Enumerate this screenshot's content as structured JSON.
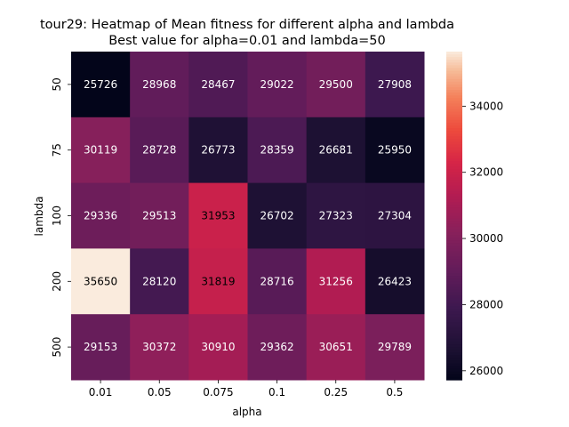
{
  "chart_data": {
    "type": "heatmap",
    "title": "tour29: Heatmap of Mean fitness for different alpha and lambda",
    "subtitle": "Best value for alpha=0.01 and lambda=50",
    "xlabel": "alpha",
    "ylabel": "lambda",
    "x": [
      "0.01",
      "0.05",
      "0.075",
      "0.1",
      "0.25",
      "0.5"
    ],
    "y": [
      "50",
      "75",
      "100",
      "200",
      "500"
    ],
    "values": [
      [
        25726,
        28968,
        28467,
        29022,
        29500,
        27908
      ],
      [
        30119,
        28728,
        26773,
        28359,
        26681,
        25950
      ],
      [
        29336,
        29513,
        31953,
        26702,
        27323,
        27304
      ],
      [
        35650,
        28120,
        31819,
        28716,
        31256,
        26423
      ],
      [
        29153,
        30372,
        30910,
        29362,
        30651,
        29789
      ]
    ],
    "colorbar": {
      "ticks": [
        26000,
        28000,
        30000,
        32000,
        34000
      ],
      "range": [
        25726,
        35650
      ]
    },
    "colormap": "rocket"
  }
}
